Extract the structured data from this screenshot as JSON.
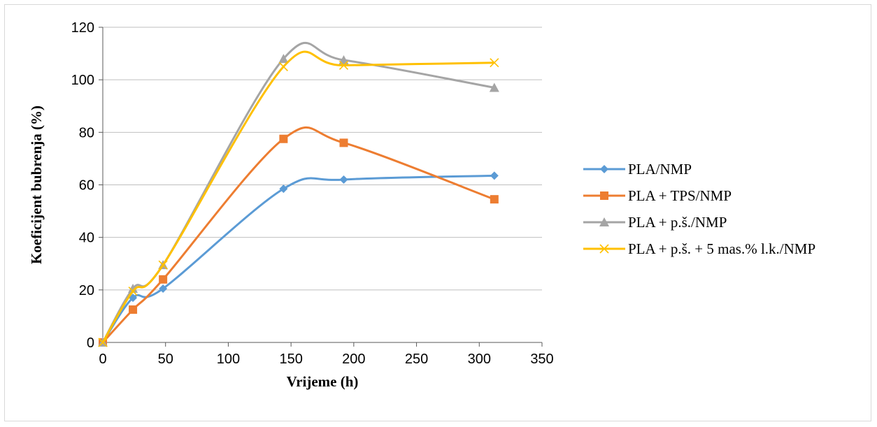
{
  "chart_data": {
    "type": "line",
    "xlabel": "Vrijeme (h)",
    "ylabel": "Koeficijent bubrenja (%)",
    "xlim": [
      0,
      350
    ],
    "ylim": [
      0,
      120
    ],
    "x_ticks": [
      0,
      50,
      100,
      150,
      200,
      250,
      300,
      350
    ],
    "y_ticks": [
      0,
      20,
      40,
      60,
      80,
      100,
      120
    ],
    "grid": "horizontal",
    "smoothed": true,
    "legend_position": "right",
    "series": [
      {
        "name": "PLA/NMP",
        "color": "#5b9bd5",
        "marker": "diamond",
        "x": [
          0,
          24,
          48,
          144,
          192,
          312
        ],
        "y": [
          0,
          17,
          20.5,
          58.5,
          62,
          63.5
        ]
      },
      {
        "name": "PLA + TPS/NMP",
        "color": "#ed7d31",
        "marker": "square",
        "x": [
          0,
          24,
          48,
          144,
          192,
          312
        ],
        "y": [
          0,
          12.5,
          24,
          77.5,
          76,
          54.5
        ]
      },
      {
        "name": "PLA + p.š./NMP",
        "color": "#a5a5a5",
        "marker": "triangle",
        "x": [
          0,
          24,
          48,
          144,
          192,
          312
        ],
        "y": [
          0,
          20.5,
          29.5,
          108,
          107.5,
          97
        ]
      },
      {
        "name": "PLA + p.š. + 5 mas.% l.k./NMP",
        "color": "#ffc000",
        "marker": "x",
        "x": [
          0,
          24,
          48,
          144,
          192,
          312
        ],
        "y": [
          0,
          19.5,
          29.5,
          105,
          105.5,
          106.5
        ]
      }
    ]
  }
}
